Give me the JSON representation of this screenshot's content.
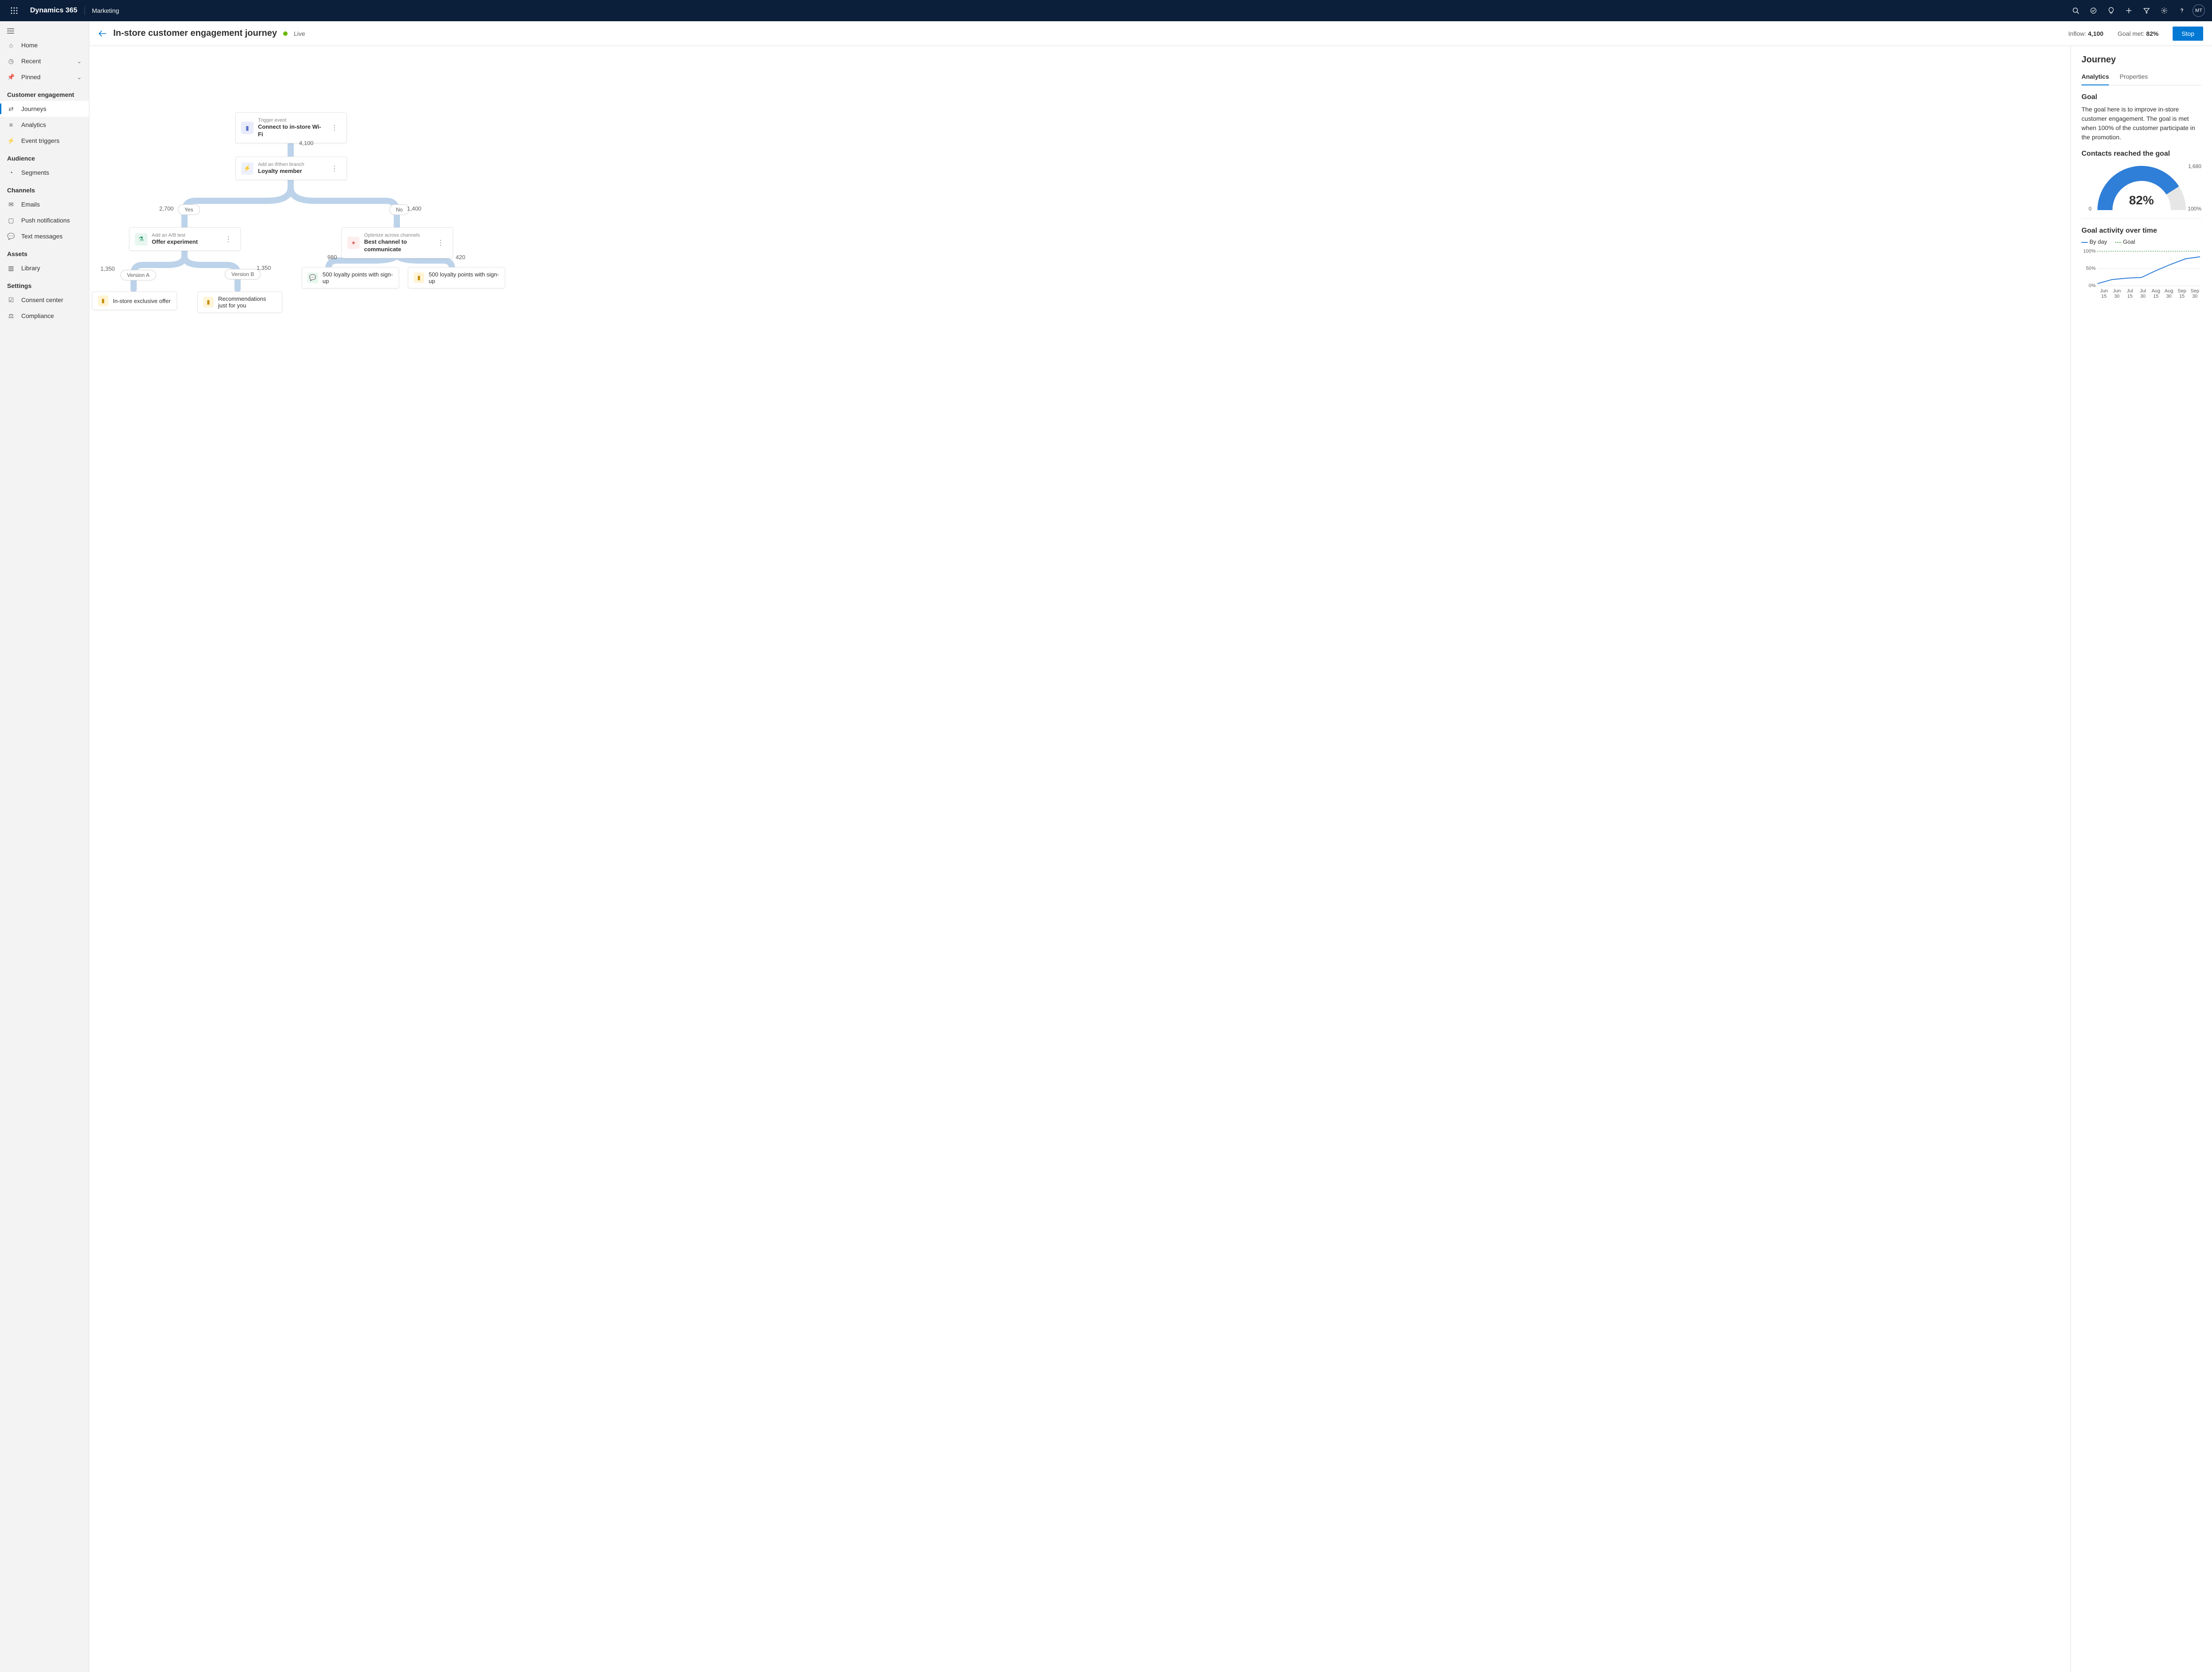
{
  "topbar": {
    "brand": "Dynamics 365",
    "module": "Marketing",
    "avatar": "MT"
  },
  "sidebar": {
    "items": {
      "home": "Home",
      "recent": "Recent",
      "pinned": "Pinned"
    },
    "sections": {
      "customer_engagement": {
        "title": "Customer engagement",
        "items": {
          "journeys": "Journeys",
          "analytics": "Analytics",
          "event_triggers": "Event triggers"
        }
      },
      "audience": {
        "title": "Audience",
        "items": {
          "segments": "Segments"
        }
      },
      "channels": {
        "title": "Channels",
        "items": {
          "emails": "Emails",
          "push": "Push notifications",
          "text": "Text messages"
        }
      },
      "assets": {
        "title": "Assets",
        "items": {
          "library": "Library"
        }
      },
      "settings": {
        "title": "Settings",
        "items": {
          "consent": "Consent center",
          "compliance": "Compliance"
        }
      }
    }
  },
  "header": {
    "title": "In-store customer engagement journey",
    "status": "Live",
    "inflow_label": "Inflow:",
    "inflow_value": "4,100",
    "goal_label": "Goal met:",
    "goal_value": "82%",
    "stop_btn": "Stop"
  },
  "flow": {
    "trigger": {
      "eyebrow": "Trigger event",
      "title": "Connect to in-store Wi-Fi",
      "icon_bg": "#e8ecfb",
      "icon_fg": "#5b6fc7"
    },
    "inflow_count": "4,100",
    "branch": {
      "eyebrow": "Add an if/then branch",
      "title": "Loyalty member",
      "icon_bg": "#eef1ff",
      "icon_fg": "#6b7ee8"
    },
    "yes_label": "Yes",
    "yes_count": "2,700",
    "no_label": "No",
    "no_count": "1,400",
    "abtest": {
      "eyebrow": "Add an A/B test",
      "title": "Offer experiment",
      "icon_bg": "#e7f6ef",
      "icon_fg": "#2a9d6e"
    },
    "optimize": {
      "eyebrow": "Optimize across channels",
      "title": "Best channel to communicate",
      "icon_bg": "#fdeeee",
      "icon_fg": "#d9544f"
    },
    "versionA": "Version A",
    "versionA_count": "1,350",
    "versionB": "Version B",
    "versionB_count": "1,350",
    "opt_left_count": "980",
    "opt_right_count": "420",
    "leaf_instore": "In-store exclusive offer",
    "leaf_reco": "Recommendations just for you",
    "leaf_loyalty": "500 loyalty points with sign-up",
    "leaf_icon_coupon_bg": "#fff4d6",
    "leaf_icon_coupon_fg": "#c48a00",
    "leaf_icon_chat_bg": "#e6f7ee",
    "leaf_icon_chat_fg": "#2bb673",
    "connector_color": "#bcd3ea"
  },
  "panel": {
    "title": "Journey",
    "tabs": {
      "analytics": "Analytics",
      "properties": "Properties"
    },
    "goal_heading": "Goal",
    "goal_text": "The goal here is to improve in-store customer engagement. The goal is met when 100% of the customer participate in the promotion.",
    "gauge_heading": "Contacts reached the goal",
    "gauge": {
      "pct": 82,
      "pct_label": "82%",
      "ext_value": "1,680",
      "min": "0",
      "max": "100%",
      "fg": "#2f7ed8",
      "bg": "#e6e6e6"
    },
    "trend_heading": "Goal activity over time",
    "legend": {
      "byday": "By day",
      "goal": "Goal",
      "byday_color": "#2f7ed8",
      "goal_color": "#4ca64c"
    },
    "chart": {
      "type": "line",
      "x_labels": [
        "Jun 15",
        "Jun 30",
        "Jul 15",
        "Jul 30",
        "Aug 15",
        "Aug 30",
        "Sep 15",
        "Sep 30"
      ],
      "y_ticks": [
        0,
        50,
        100
      ],
      "y_tick_labels": [
        "0%",
        "50%",
        "100%"
      ],
      "goal_line": 100,
      "values": [
        6,
        18,
        22,
        24,
        44,
        62,
        78,
        84
      ],
      "line_color": "#2f7ed8",
      "goal_color": "#4ca64c",
      "grid_color": "#e8e8e8"
    }
  }
}
